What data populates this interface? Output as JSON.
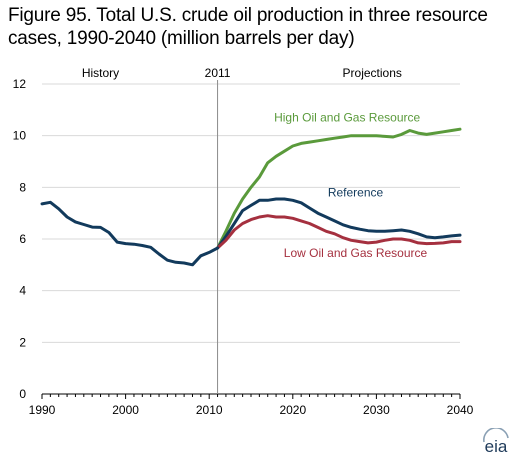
{
  "title": "Figure 95. Total U.S. crude oil production in three resource cases, 1990-2040 (million barrels per day)",
  "logo_text": "eia",
  "chart_data": {
    "type": "line",
    "xlim": [
      1990,
      2040
    ],
    "ylim": [
      0,
      12
    ],
    "x_ticks": [
      1990,
      2000,
      2010,
      2020,
      2030,
      2040
    ],
    "y_ticks": [
      0,
      2,
      4,
      6,
      8,
      10,
      12
    ],
    "divider_x": 2011,
    "annotations": {
      "history": "History",
      "year": "2011",
      "projections": "Projections"
    },
    "grid": "horizontal",
    "series": [
      {
        "name": "High Oil and Gas Resource",
        "color": "#5a9a3b",
        "label_pos": [
          2026.5,
          10.55
        ],
        "x": [
          2011,
          2012,
          2013,
          2014,
          2015,
          2016,
          2017,
          2018,
          2019,
          2020,
          2021,
          2022,
          2023,
          2024,
          2025,
          2026,
          2027,
          2028,
          2029,
          2030,
          2031,
          2032,
          2033,
          2034,
          2035,
          2036,
          2037,
          2038,
          2039,
          2040
        ],
        "y": [
          5.65,
          6.3,
          7.0,
          7.55,
          8.0,
          8.4,
          8.95,
          9.2,
          9.4,
          9.6,
          9.7,
          9.75,
          9.8,
          9.85,
          9.9,
          9.95,
          10.0,
          10.0,
          10.0,
          10.0,
          9.97,
          9.95,
          10.05,
          10.2,
          10.1,
          10.05,
          10.1,
          10.15,
          10.2,
          10.25
        ]
      },
      {
        "name": "Reference",
        "color": "#123a5c",
        "label_pos": [
          2027.5,
          7.65
        ],
        "x": [
          2011,
          2012,
          2013,
          2014,
          2015,
          2016,
          2017,
          2018,
          2019,
          2020,
          2021,
          2022,
          2023,
          2024,
          2025,
          2026,
          2027,
          2028,
          2029,
          2030,
          2031,
          2032,
          2033,
          2034,
          2035,
          2036,
          2037,
          2038,
          2039,
          2040
        ],
        "y": [
          5.65,
          6.1,
          6.6,
          7.1,
          7.3,
          7.5,
          7.5,
          7.55,
          7.55,
          7.5,
          7.4,
          7.2,
          7.0,
          6.85,
          6.7,
          6.55,
          6.45,
          6.38,
          6.32,
          6.3,
          6.3,
          6.32,
          6.35,
          6.3,
          6.2,
          6.08,
          6.05,
          6.08,
          6.12,
          6.15
        ]
      },
      {
        "name": "Low Oil and Gas Resource",
        "color": "#a5303f",
        "label_pos": [
          2027.5,
          5.3
        ],
        "x": [
          2011,
          2012,
          2013,
          2014,
          2015,
          2016,
          2017,
          2018,
          2019,
          2020,
          2021,
          2022,
          2023,
          2024,
          2025,
          2026,
          2027,
          2028,
          2029,
          2030,
          2031,
          2032,
          2033,
          2034,
          2035,
          2036,
          2037,
          2038,
          2039,
          2040
        ],
        "y": [
          5.65,
          5.95,
          6.35,
          6.6,
          6.75,
          6.85,
          6.9,
          6.85,
          6.85,
          6.8,
          6.7,
          6.6,
          6.45,
          6.3,
          6.2,
          6.05,
          5.95,
          5.9,
          5.85,
          5.88,
          5.95,
          6.0,
          6.0,
          5.95,
          5.85,
          5.82,
          5.83,
          5.85,
          5.9,
          5.9
        ]
      },
      {
        "name": "History",
        "color": "#123a5c",
        "x": [
          1990,
          1991,
          1992,
          1993,
          1994,
          1995,
          1996,
          1997,
          1998,
          1999,
          2000,
          2001,
          2002,
          2003,
          2004,
          2005,
          2006,
          2007,
          2008,
          2009,
          2010,
          2011
        ],
        "y": [
          7.36,
          7.42,
          7.17,
          6.85,
          6.66,
          6.56,
          6.46,
          6.45,
          6.25,
          5.88,
          5.82,
          5.8,
          5.75,
          5.68,
          5.42,
          5.18,
          5.1,
          5.07,
          5.0,
          5.35,
          5.48,
          5.65
        ]
      }
    ]
  }
}
